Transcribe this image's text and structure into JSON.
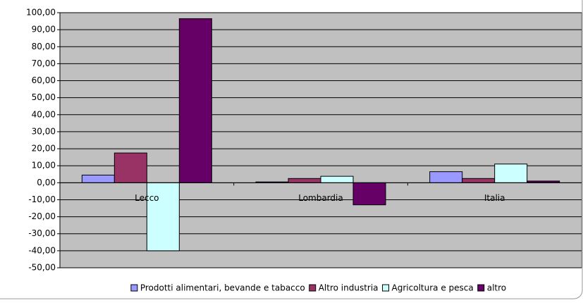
{
  "chart_data": {
    "type": "bar",
    "categories": [
      "Lecco",
      "Lombardia",
      "Italia"
    ],
    "series": [
      {
        "name": "Prodotti alimentari, bevande e tabacco",
        "color": "#9999ff",
        "values": [
          4.5,
          0.5,
          6.5
        ]
      },
      {
        "name": "Altro industria",
        "color": "#993366",
        "values": [
          17.5,
          2.5,
          2.5
        ]
      },
      {
        "name": "Agricoltura e pesca",
        "color": "#ccffff",
        "values": [
          -40,
          3.8,
          11
        ]
      },
      {
        "name": "altro",
        "color": "#660066",
        "values": [
          96.5,
          -13,
          1
        ]
      }
    ],
    "ylim": [
      -50,
      100
    ],
    "yticks": [
      {
        "value": -50,
        "label": "-50,00"
      },
      {
        "value": -40,
        "label": "-40,00"
      },
      {
        "value": -30,
        "label": "-30,00"
      },
      {
        "value": -20,
        "label": "-20,00"
      },
      {
        "value": -10,
        "label": "-10,00"
      },
      {
        "value": 0,
        "label": "0,00"
      },
      {
        "value": 10,
        "label": "10,00"
      },
      {
        "value": 20,
        "label": "20,00"
      },
      {
        "value": 30,
        "label": "30,00"
      },
      {
        "value": 40,
        "label": "40,00"
      },
      {
        "value": 50,
        "label": "50,00"
      },
      {
        "value": 60,
        "label": "60,00"
      },
      {
        "value": 70,
        "label": "70,00"
      },
      {
        "value": 80,
        "label": "80,00"
      },
      {
        "value": 90,
        "label": "90,00"
      },
      {
        "value": 100,
        "label": "100,00"
      }
    ],
    "grid": true,
    "legend": "bottom"
  }
}
